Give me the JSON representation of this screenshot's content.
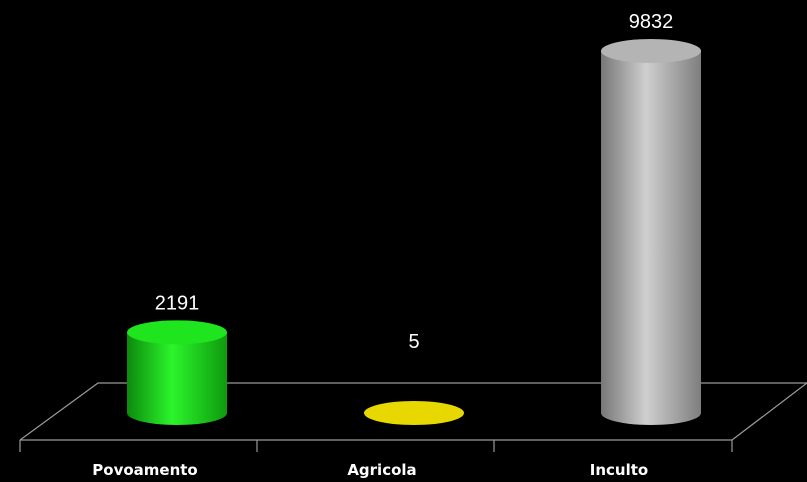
{
  "chart_data": {
    "type": "bar",
    "categories": [
      "Povoamento",
      "Agricola",
      "Inculto"
    ],
    "values": [
      2191,
      5,
      9832
    ],
    "ylim": [
      0,
      9832
    ],
    "grid": false,
    "legend": "none",
    "colors": [
      "#1fe51f",
      "#e6d800",
      "#b4b4b4"
    ]
  }
}
